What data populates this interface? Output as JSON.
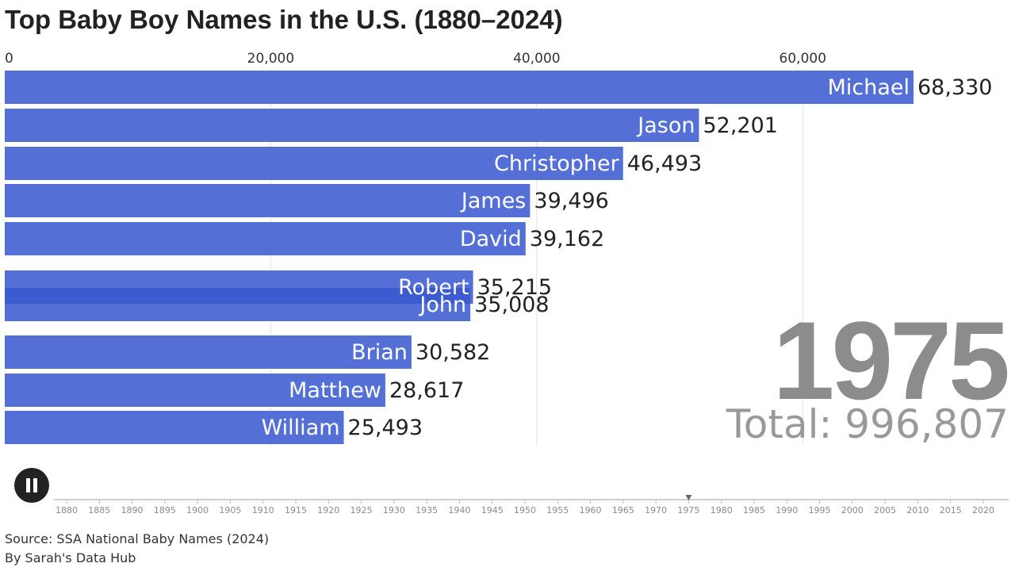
{
  "title": "Top Baby Boy Names in the U.S. (1880–2024)",
  "current_year": "1975",
  "total_text": "Total: 996,807",
  "source": "Source: SSA National Baby Names (2024)",
  "credit": "By Sarah's Data Hub",
  "controls": {
    "pause_icon": "pause-icon"
  },
  "colors": {
    "bar": "#5470d6",
    "bar_overlap": "#3c5bd0",
    "grid": "#e2e2e2",
    "year": "#8c8c8c",
    "axis_text": "#333333"
  },
  "chart_data": {
    "type": "bar",
    "orientation": "horizontal",
    "categories": [
      "Michael",
      "Jason",
      "Christopher",
      "James",
      "David",
      "Robert",
      "John",
      "Brian",
      "Matthew",
      "William"
    ],
    "values": [
      68330,
      52201,
      46493,
      39496,
      39162,
      35215,
      35008,
      30582,
      28617,
      25493
    ],
    "value_labels": [
      "68,330",
      "52,201",
      "46,493",
      "39,496",
      "39,162",
      "35,215",
      "35,008",
      "30,582",
      "28,617",
      "25,493"
    ],
    "xlim": [
      0,
      70000
    ],
    "x_ticks": [
      0,
      20000,
      40000,
      60000
    ],
    "x_tick_labels": [
      "0",
      "20,000",
      "40,000",
      "60,000"
    ],
    "grid": true,
    "timeline": {
      "start": 1880,
      "end": 2024,
      "current": 1975,
      "labels": [
        "1880",
        "1885",
        "1890",
        "1895",
        "1900",
        "1905",
        "1910",
        "1915",
        "1920",
        "1925",
        "1930",
        "1935",
        "1940",
        "1945",
        "1950",
        "1955",
        "1960",
        "1965",
        "1970",
        "1975",
        "1980",
        "1985",
        "1990",
        "1995",
        "2000",
        "2005",
        "2010",
        "2015",
        "2020"
      ]
    }
  }
}
